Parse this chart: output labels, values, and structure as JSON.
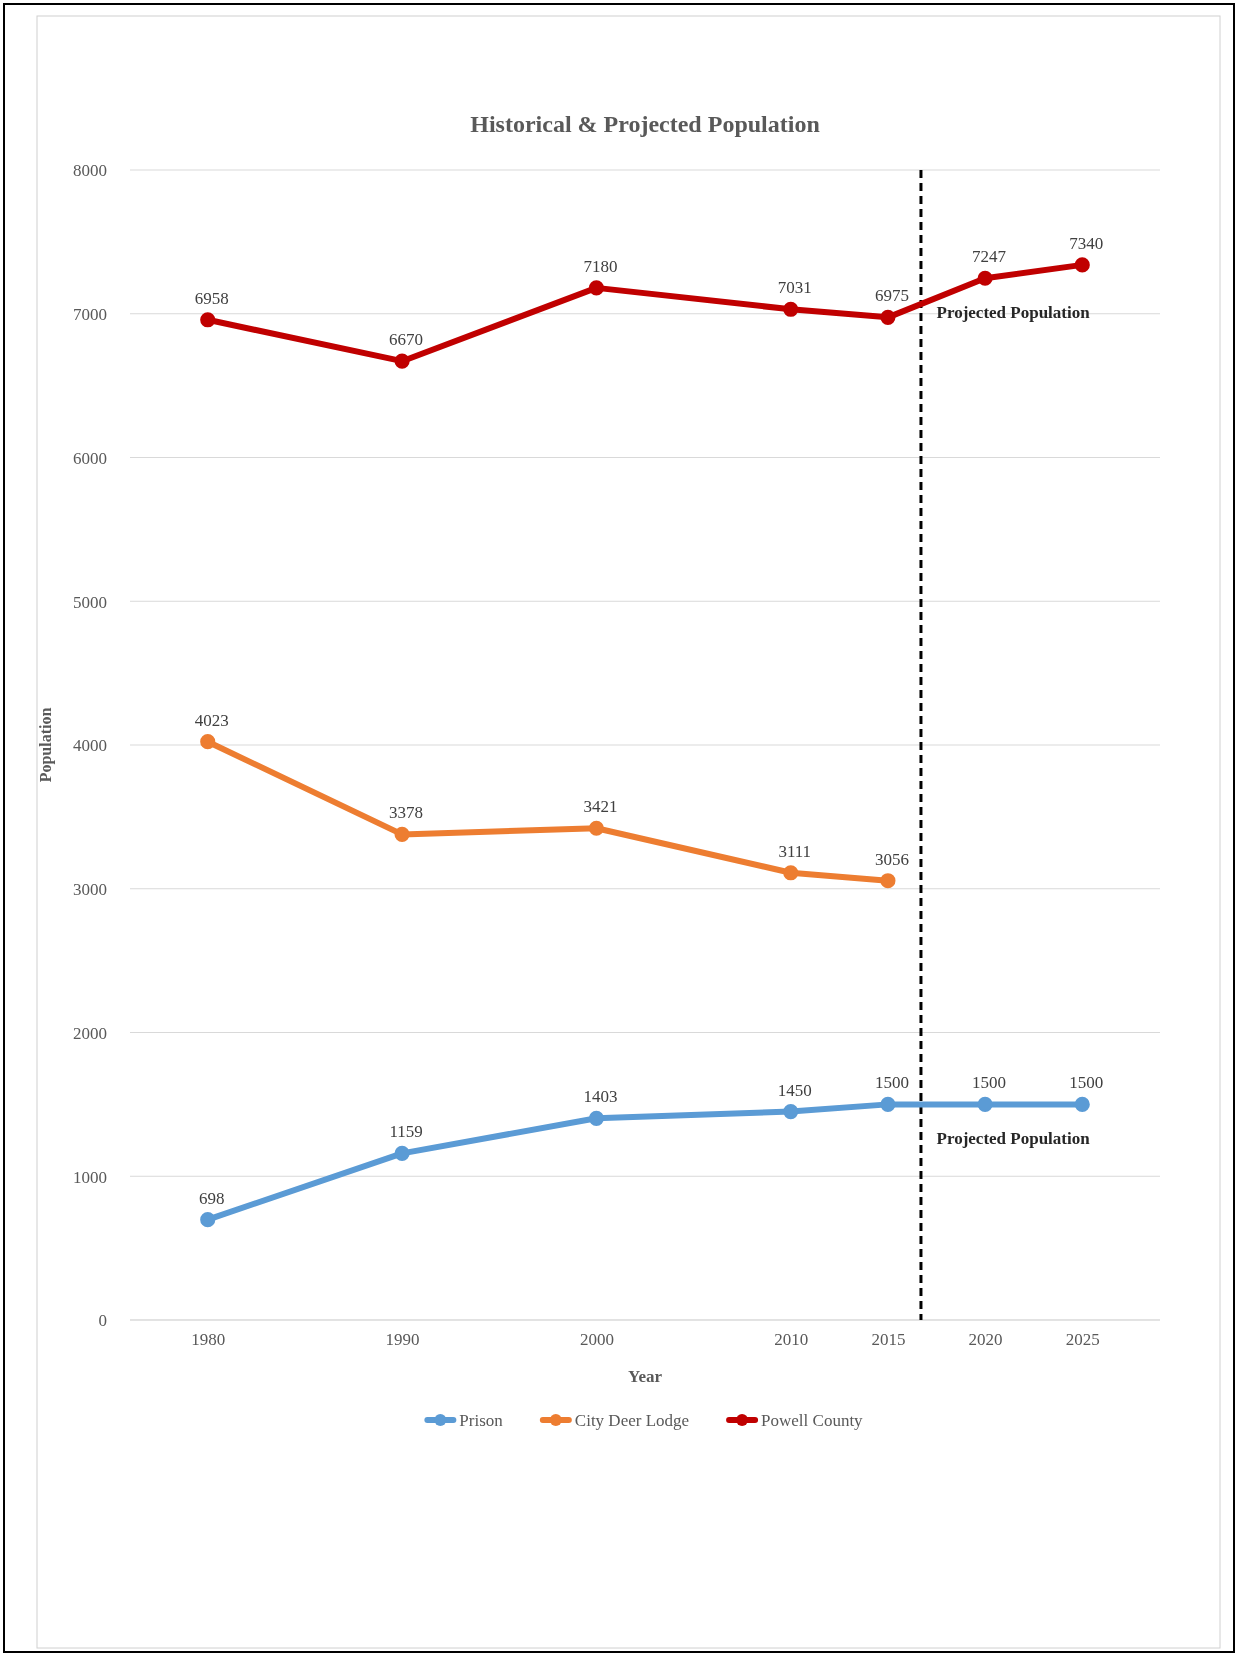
{
  "chart_data": {
    "type": "line",
    "title": "Historical & Projected Population",
    "xlabel": "Year",
    "ylabel": "Population",
    "x": [
      1980,
      1990,
      2000,
      2010,
      2015,
      2020,
      2025
    ],
    "xlim": [
      1976,
      2029
    ],
    "xticks": [
      1980,
      1990,
      2000,
      2010,
      2015,
      2020,
      2025
    ],
    "ylim": [
      0,
      8000
    ],
    "yticks": [
      0,
      1000,
      2000,
      3000,
      4000,
      5000,
      6000,
      7000,
      8000
    ],
    "series": [
      {
        "name": "Prison",
        "color": "#5b9bd5",
        "values": [
          698,
          1159,
          1403,
          1450,
          1500,
          1500,
          1500
        ]
      },
      {
        "name": "City Deer Lodge",
        "color": "#ed7d31",
        "values": [
          4023,
          3378,
          3421,
          3111,
          3056,
          null,
          null
        ]
      },
      {
        "name": "Powell County",
        "color": "#c00000",
        "values": [
          6958,
          6670,
          7180,
          7031,
          6975,
          7247,
          7340
        ]
      }
    ],
    "ref_lines": [
      {
        "axis": "x",
        "value": 2016.7,
        "label": null,
        "color": "#000000",
        "line_style": "dashed"
      }
    ],
    "annotations": [
      {
        "text": "Projected Population",
        "x": 2020,
        "y": 7247
      },
      {
        "text": "Projected Population",
        "x": 2020,
        "y": 1500
      }
    ],
    "data_labels": true,
    "grid": "y",
    "legend": "bottom",
    "marker": "circle",
    "line_style": "solid"
  }
}
